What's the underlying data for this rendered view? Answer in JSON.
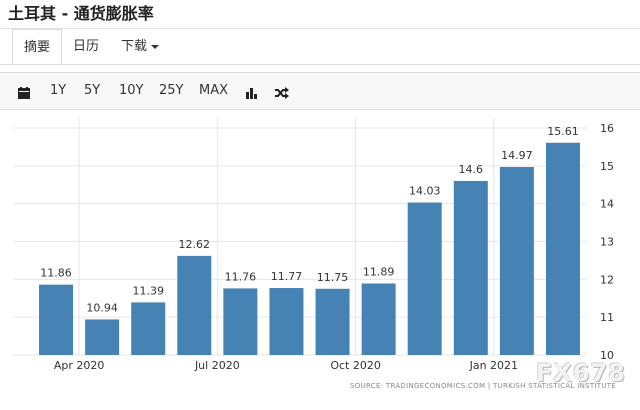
{
  "page": {
    "title": "土耳其 - 通货膨胀率"
  },
  "tabs": [
    {
      "label": "摘要",
      "active": true
    },
    {
      "label": "日历",
      "active": false
    },
    {
      "label": "下载",
      "active": false,
      "dropdown": true
    }
  ],
  "toolbar": {
    "calendar_icon": "calendar-icon",
    "ranges": [
      "1Y",
      "5Y",
      "10Y",
      "25Y",
      "MAX"
    ],
    "chart_type_icon": "bar-chart-icon",
    "compare_icon": "shuffle-icon"
  },
  "colors": {
    "bar": "#4682b4",
    "grid": "#e6e6e6",
    "text": "#333333",
    "toolbar_bg": "#f8f8f8"
  },
  "chart_data": {
    "type": "bar",
    "categories": [
      "2020-03",
      "2020-04",
      "2020-05",
      "2020-06",
      "2020-07",
      "2020-08",
      "2020-09",
      "2020-10",
      "2020-11",
      "2020-12",
      "2021-01",
      "2021-02"
    ],
    "values": [
      11.86,
      10.94,
      11.39,
      12.62,
      11.76,
      11.77,
      11.75,
      11.89,
      14.03,
      14.6,
      14.97,
      15.61
    ],
    "value_labels": [
      "11.86",
      "10.94",
      "11.39",
      "12.62",
      "11.76",
      "11.77",
      "11.75",
      "11.89",
      "14.03",
      "14.6",
      "14.97",
      "15.61"
    ],
    "x_tick_labels": [
      {
        "label": "Apr 2020",
        "at_index": 1
      },
      {
        "label": "Jul 2020",
        "at_index": 4
      },
      {
        "label": "Oct 2020",
        "at_index": 7
      },
      {
        "label": "Jan 2021",
        "at_index": 10
      }
    ],
    "y_ticks": [
      10,
      11,
      12,
      13,
      14,
      15,
      16
    ],
    "ylim": [
      10,
      16
    ],
    "y_axis_side": "right",
    "grid": true,
    "source": "SOURCE: TRADINGECONOMICS.COM | TURKISH STATISTICAL INSTITUTE"
  },
  "watermark": "FX678"
}
